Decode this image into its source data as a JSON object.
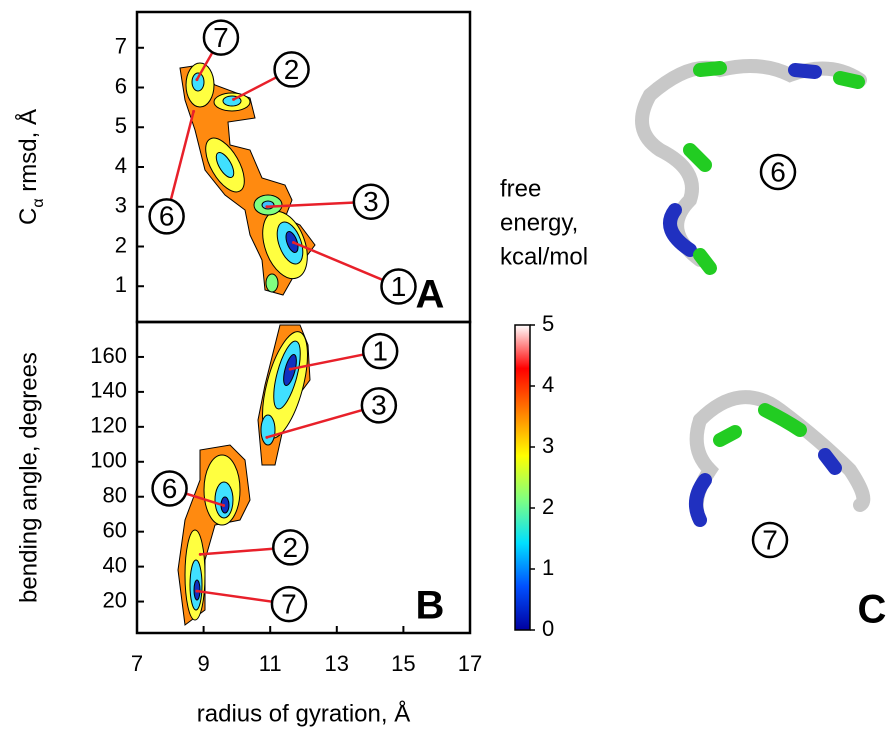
{
  "chart_data": [
    {
      "type": "contour",
      "panel_label": "A",
      "ylabel_parts": [
        "C",
        "α",
        " rmsd, Å"
      ],
      "xlim": [
        7,
        17
      ],
      "ylim": [
        0.1,
        7.9
      ],
      "yticks": [
        1,
        2,
        3,
        4,
        5,
        6,
        7
      ],
      "annotations": [
        {
          "label": "7",
          "x": 8.8,
          "y": 6.2
        },
        {
          "label": "2",
          "x": 9.9,
          "y": 5.7
        },
        {
          "label": "6",
          "x": 8.7,
          "y": 5.4
        },
        {
          "label": "3",
          "x": 10.9,
          "y": 3.0
        },
        {
          "label": "1",
          "x": 11.7,
          "y": 2.1
        }
      ],
      "annotation_color": "#e8202a"
    },
    {
      "type": "contour",
      "panel_label": "B",
      "ylabel": "bending angle, degrees",
      "xlabel": "radius of gyration, Å",
      "xlim": [
        7,
        17
      ],
      "xticks": [
        7,
        9,
        11,
        13,
        15,
        17
      ],
      "ylim": [
        2,
        180
      ],
      "yticks": [
        20,
        40,
        60,
        80,
        100,
        120,
        140,
        160
      ],
      "annotations": [
        {
          "label": "1",
          "x": 11.6,
          "y": 153
        },
        {
          "label": "3",
          "x": 10.9,
          "y": 114
        },
        {
          "label": "6",
          "x": 9.6,
          "y": 75
        },
        {
          "label": "2",
          "x": 8.9,
          "y": 47
        },
        {
          "label": "7",
          "x": 8.8,
          "y": 26
        }
      ],
      "annotation_color": "#e8202a"
    },
    {
      "type": "colorbar",
      "title_lines": [
        "free",
        "energy,",
        "kcal/mol"
      ],
      "ylim": [
        0,
        5
      ],
      "yticks": [
        0,
        1,
        2,
        3,
        4,
        5
      ],
      "colors": [
        "#0000a0",
        "#0050ff",
        "#00e0ff",
        "#80ff80",
        "#ffff00",
        "#ff8000",
        "#ff0000",
        "#ffffff"
      ]
    }
  ],
  "panel_c": {
    "label": "C",
    "structures": [
      {
        "label": "6"
      },
      {
        "label": "7"
      }
    ]
  }
}
